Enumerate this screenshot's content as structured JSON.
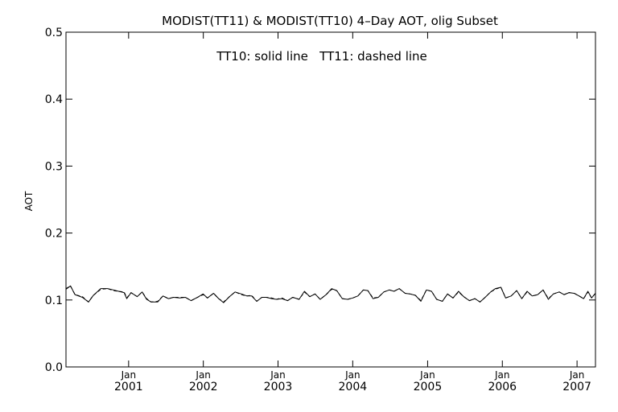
{
  "chart_data": {
    "type": "line",
    "title": "MODIST(TT11) & MODIST(TT10) 4–Day AOT, olig Subset",
    "annotation": "TT10: solid line   TT11: dashed line",
    "ylabel": "AOT",
    "xlabel": "",
    "ylim": [
      0.0,
      0.5
    ],
    "xlim": [
      "2000-03-01",
      "2007-04-01"
    ],
    "grid": false,
    "y_ticks": [
      "0.0",
      "0.1",
      "0.2",
      "0.3",
      "0.4",
      "0.5"
    ],
    "x_ticks": [
      {
        "month": "Jan",
        "year": "2001",
        "date": "2001-01-01"
      },
      {
        "month": "Jan",
        "year": "2002",
        "date": "2002-01-01"
      },
      {
        "month": "Jan",
        "year": "2003",
        "date": "2003-01-01"
      },
      {
        "month": "Jan",
        "year": "2004",
        "date": "2004-01-01"
      },
      {
        "month": "Jan",
        "year": "2005",
        "date": "2005-01-01"
      },
      {
        "month": "Jan",
        "year": "2006",
        "date": "2006-01-01"
      },
      {
        "month": "Jan",
        "year": "2007",
        "date": "2007-01-01"
      }
    ],
    "series": [
      {
        "name": "TT10",
        "style": "solid",
        "x": [
          "2000-03-01",
          "2000-03-23",
          "2000-04-14",
          "2000-05-20",
          "2000-06-19",
          "2000-07-13",
          "2000-08-18",
          "2000-09-20",
          "2000-10-19",
          "2000-11-13",
          "2000-12-10",
          "2000-12-23",
          "2001-01-13",
          "2001-02-12",
          "2001-03-08",
          "2001-03-30",
          "2001-04-21",
          "2001-05-23",
          "2001-06-18",
          "2001-07-15",
          "2001-08-08",
          "2001-09-08",
          "2001-10-05",
          "2001-11-02",
          "2001-12-04",
          "2001-12-31",
          "2002-01-21",
          "2002-02-20",
          "2002-03-17",
          "2002-04-10",
          "2002-05-09",
          "2002-06-05",
          "2002-07-06",
          "2002-08-02",
          "2002-08-25",
          "2002-09-19",
          "2002-10-14",
          "2002-11-05",
          "2002-12-01",
          "2002-12-24",
          "2003-01-20",
          "2003-02-17",
          "2003-03-14",
          "2003-04-14",
          "2003-05-10",
          "2003-06-05",
          "2003-07-01",
          "2003-07-26",
          "2003-08-24",
          "2003-09-20",
          "2003-10-15",
          "2003-11-11",
          "2003-12-07",
          "2004-01-01",
          "2004-01-26",
          "2004-02-22",
          "2004-03-15",
          "2004-04-09",
          "2004-05-05",
          "2004-06-01",
          "2004-06-28",
          "2004-07-21",
          "2004-08-15",
          "2004-09-13",
          "2004-10-08",
          "2004-11-02",
          "2004-11-29",
          "2004-12-26",
          "2005-01-20",
          "2005-02-14",
          "2005-03-14",
          "2005-04-08",
          "2005-05-05",
          "2005-06-01",
          "2005-06-26",
          "2005-07-24",
          "2005-08-20",
          "2005-09-14",
          "2005-10-09",
          "2005-11-05",
          "2005-11-28",
          "2005-12-25",
          "2006-01-17",
          "2006-02-13",
          "2006-03-12",
          "2006-04-06",
          "2006-05-02",
          "2006-05-27",
          "2006-06-23",
          "2006-07-19",
          "2006-08-14",
          "2006-09-07",
          "2006-10-06",
          "2006-10-30",
          "2006-11-23",
          "2006-12-18",
          "2007-01-11",
          "2007-02-02",
          "2007-02-23",
          "2007-03-13",
          "2007-04-01"
        ],
        "y": [
          0.116,
          0.121,
          0.108,
          0.104,
          0.097,
          0.107,
          0.117,
          0.117,
          0.115,
          0.113,
          0.111,
          0.102,
          0.111,
          0.105,
          0.112,
          0.101,
          0.097,
          0.097,
          0.106,
          0.102,
          0.104,
          0.103,
          0.104,
          0.099,
          0.104,
          0.109,
          0.103,
          0.11,
          0.102,
          0.096,
          0.105,
          0.112,
          0.109,
          0.106,
          0.106,
          0.098,
          0.104,
          0.104,
          0.102,
          0.101,
          0.102,
          0.099,
          0.104,
          0.101,
          0.113,
          0.105,
          0.109,
          0.101,
          0.108,
          0.117,
          0.114,
          0.102,
          0.101,
          0.103,
          0.106,
          0.115,
          0.114,
          0.102,
          0.104,
          0.112,
          0.115,
          0.113,
          0.117,
          0.11,
          0.109,
          0.107,
          0.098,
          0.115,
          0.113,
          0.101,
          0.098,
          0.109,
          0.103,
          0.113,
          0.105,
          0.099,
          0.102,
          0.097,
          0.104,
          0.112,
          0.117,
          0.119,
          0.103,
          0.106,
          0.114,
          0.102,
          0.113,
          0.106,
          0.108,
          0.115,
          0.101,
          0.109,
          0.112,
          0.108,
          0.111,
          0.11,
          0.106,
          0.102,
          0.113,
          0.103,
          0.11
        ]
      },
      {
        "name": "TT11",
        "style": "dashed",
        "x": [
          "2000-03-01",
          "2000-03-23",
          "2000-04-14",
          "2000-05-20",
          "2000-06-19",
          "2000-07-13",
          "2000-08-18",
          "2000-09-20",
          "2000-10-19",
          "2000-11-13",
          "2000-12-10",
          "2000-12-23",
          "2001-01-13",
          "2001-02-12",
          "2001-03-08",
          "2001-03-30",
          "2001-04-21",
          "2001-05-23",
          "2001-06-18",
          "2001-07-15",
          "2001-08-08",
          "2001-09-08",
          "2001-10-05",
          "2001-11-02",
          "2001-12-04",
          "2001-12-31",
          "2002-01-21",
          "2002-02-20",
          "2002-03-17",
          "2002-04-10",
          "2002-05-09",
          "2002-06-05",
          "2002-07-06",
          "2002-08-02",
          "2002-08-25",
          "2002-09-19",
          "2002-10-14",
          "2002-11-05",
          "2002-12-01",
          "2002-12-24",
          "2003-01-20",
          "2003-02-17",
          "2003-03-14",
          "2003-04-14",
          "2003-05-10",
          "2003-06-05",
          "2003-07-01",
          "2003-07-26",
          "2003-08-24",
          "2003-09-20",
          "2003-10-15",
          "2003-11-11",
          "2003-12-07",
          "2004-01-01",
          "2004-01-26",
          "2004-02-22",
          "2004-03-15",
          "2004-04-09",
          "2004-05-05",
          "2004-06-01",
          "2004-06-28",
          "2004-07-21",
          "2004-08-15",
          "2004-09-13",
          "2004-10-08",
          "2004-11-02",
          "2004-11-29",
          "2004-12-26",
          "2005-01-20",
          "2005-02-14",
          "2005-03-14",
          "2005-04-08",
          "2005-05-05",
          "2005-06-01",
          "2005-06-26",
          "2005-07-24",
          "2005-08-20",
          "2005-09-14",
          "2005-10-09",
          "2005-11-05",
          "2005-11-28",
          "2005-12-25",
          "2006-01-17",
          "2006-02-13",
          "2006-03-12",
          "2006-04-06",
          "2006-05-02",
          "2006-05-27",
          "2006-06-23",
          "2006-07-19",
          "2006-08-14",
          "2006-09-07",
          "2006-10-06",
          "2006-10-30",
          "2006-11-23",
          "2006-12-18",
          "2007-01-11",
          "2007-02-02",
          "2007-02-23",
          "2007-03-13",
          "2007-04-01"
        ],
        "y": [
          0.117,
          0.121,
          0.108,
          0.105,
          0.097,
          0.107,
          0.116,
          0.117,
          0.114,
          0.113,
          0.112,
          0.103,
          0.111,
          0.105,
          0.112,
          0.102,
          0.097,
          0.098,
          0.106,
          0.102,
          0.104,
          0.104,
          0.104,
          0.099,
          0.104,
          0.108,
          0.103,
          0.11,
          0.102,
          0.097,
          0.105,
          0.112,
          0.108,
          0.106,
          0.107,
          0.098,
          0.104,
          0.104,
          0.103,
          0.101,
          0.103,
          0.099,
          0.104,
          0.101,
          0.112,
          0.105,
          0.109,
          0.101,
          0.108,
          0.116,
          0.114,
          0.102,
          0.101,
          0.103,
          0.106,
          0.115,
          0.114,
          0.103,
          0.104,
          0.112,
          0.115,
          0.113,
          0.117,
          0.11,
          0.109,
          0.107,
          0.099,
          0.115,
          0.113,
          0.101,
          0.098,
          0.109,
          0.103,
          0.112,
          0.105,
          0.099,
          0.102,
          0.097,
          0.104,
          0.112,
          0.116,
          0.119,
          0.103,
          0.106,
          0.114,
          0.102,
          0.112,
          0.106,
          0.108,
          0.115,
          0.102,
          0.109,
          0.112,
          0.108,
          0.111,
          0.11,
          0.106,
          0.102,
          0.112,
          0.103,
          0.11
        ]
      }
    ]
  }
}
